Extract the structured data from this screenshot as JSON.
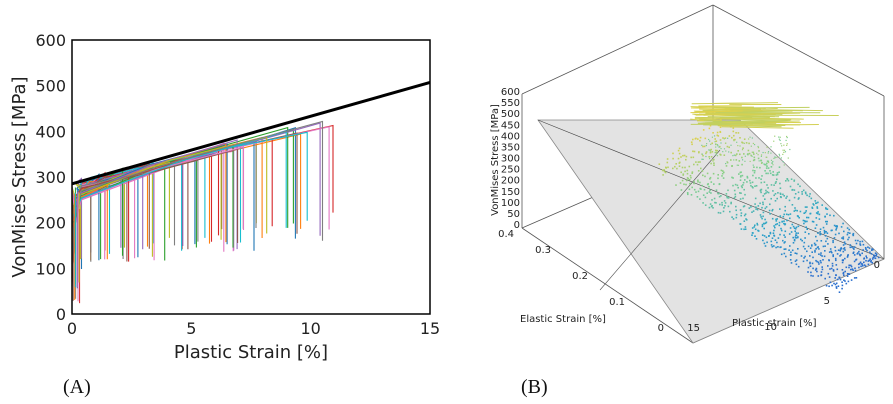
{
  "chart_data": [
    {
      "type": "line",
      "panel_label": "(A)",
      "xlabel": "Plastic Strain [%]",
      "ylabel": "VonMises Stress [MPa]",
      "xlim": [
        0,
        15
      ],
      "ylim": [
        0,
        600
      ],
      "xticks": [
        "0",
        "5",
        "10",
        "15"
      ],
      "yticks": [
        "0",
        "100",
        "200",
        "300",
        "400",
        "500",
        "600"
      ],
      "grid": false,
      "series": [
        {
          "role": "reference-line",
          "color": "#000000",
          "x": [
            0,
            15
          ],
          "y": [
            285,
            507
          ]
        },
        {
          "role": "many-specimen-curves",
          "colors": [
            "#1f77b4",
            "#ff7f0e",
            "#2ca02c",
            "#d62728",
            "#9467bd",
            "#8c564b",
            "#e377c2",
            "#17becf",
            "#bcbd22",
            "#7f7f7f"
          ],
          "x": [
            0.4,
            0.7,
            1.2,
            1.6,
            2.1,
            2.5,
            3.0,
            3.5,
            3.9,
            4.3,
            4.8,
            5.2,
            5.7,
            6.1,
            6.6,
            7.0,
            7.5,
            7.9,
            8.4,
            8.8,
            9.5,
            10.0,
            10.8,
            11.2
          ],
          "y_peak": [
            300,
            304,
            310,
            313,
            318,
            320,
            326,
            330,
            334,
            338,
            344,
            348,
            356,
            360,
            366,
            372,
            378,
            384,
            390,
            396,
            405,
            410,
            430,
            440
          ],
          "y_end": [
            110,
            120,
            115,
            125,
            140,
            120,
            130,
            150,
            120,
            140,
            160,
            150,
            140,
            160,
            150,
            180,
            150,
            170,
            190,
            200,
            170,
            175,
            200,
            210
          ]
        }
      ]
    },
    {
      "type": "scatter",
      "subtype": "3d",
      "panel_label": "(B)",
      "xlabel": "Plastic strain [%]",
      "ylabel": "Elastic Strain [%]",
      "zlabel": "VonMises Stress [MPa]",
      "xticks": [
        "0",
        "5",
        "10",
        "15"
      ],
      "yticks": [
        "0",
        "0.1",
        "0.2",
        "0.3",
        "0.4"
      ],
      "zticks": [
        "0",
        "50",
        "100",
        "150",
        "200",
        "250",
        "300",
        "350",
        "400",
        "450",
        "500",
        "550",
        "600"
      ],
      "colormap": [
        "#2b6fce",
        "#2aa3c8",
        "#7dcf90",
        "#f2d13d"
      ],
      "plane_color": "#e0e0e0"
    }
  ]
}
